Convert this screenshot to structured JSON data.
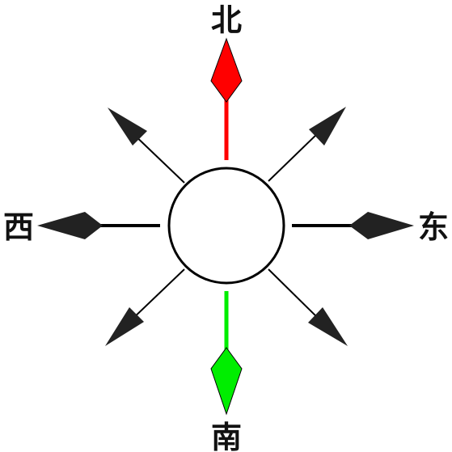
{
  "labels": {
    "north": "北",
    "south": "南",
    "east": "东",
    "west": "西"
  },
  "colors": {
    "north_arrow": "#ff0000",
    "south_arrow": "#00ee00",
    "arrow_dark": "#222222",
    "line": "#000000",
    "center_fill": "#ffffff"
  },
  "icons": {
    "center": "circle-icon",
    "arrows": "arrow-icon"
  }
}
